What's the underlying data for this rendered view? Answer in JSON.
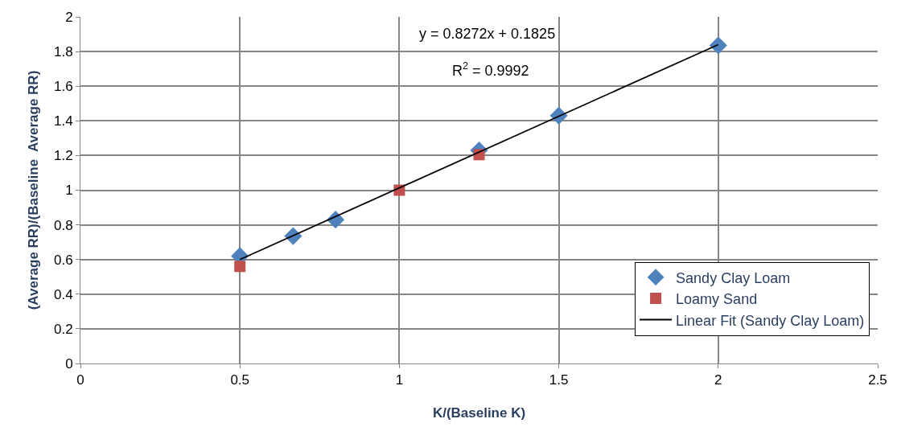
{
  "chart_data": {
    "type": "scatter",
    "xlabel": "K/(Baseline K)",
    "ylabel": "(Average RR)/(Baseline  Average RR)",
    "xlim": [
      0,
      2.5
    ],
    "xticks": [
      0,
      0.5,
      1,
      1.5,
      2,
      2.5
    ],
    "ylim": [
      0,
      2
    ],
    "yticks": [
      0,
      0.2,
      0.4,
      0.6,
      0.8,
      1,
      1.2,
      1.4,
      1.6,
      1.8,
      2
    ],
    "grid": true,
    "legend": "bottom right",
    "annotations": [
      "y = 0.8272x + 0.1825",
      "R$^{2}$ = 0.9992"
    ],
    "series": [
      {
        "name": "Sandy Clay Loam",
        "color": "#4f81bd",
        "marker": "diamond",
        "x": [
          0.5,
          0.667,
          0.8,
          1.25,
          1.5,
          2
        ],
        "values": [
          0.62,
          0.735,
          0.83,
          1.23,
          1.43,
          1.835
        ]
      },
      {
        "name": "Loamy Sand",
        "color": "#c0504d",
        "marker": "square",
        "x": [
          0.5,
          1,
          1.25
        ],
        "values": [
          0.56,
          1.0,
          1.205
        ]
      },
      {
        "name": "Linear Fit (Sandy Clay Loam)",
        "type": "line",
        "color": "#000000",
        "line_style": "solid",
        "marker": "none",
        "x": [
          0.5,
          2
        ],
        "values": [
          0.6,
          1.84
        ]
      }
    ]
  }
}
